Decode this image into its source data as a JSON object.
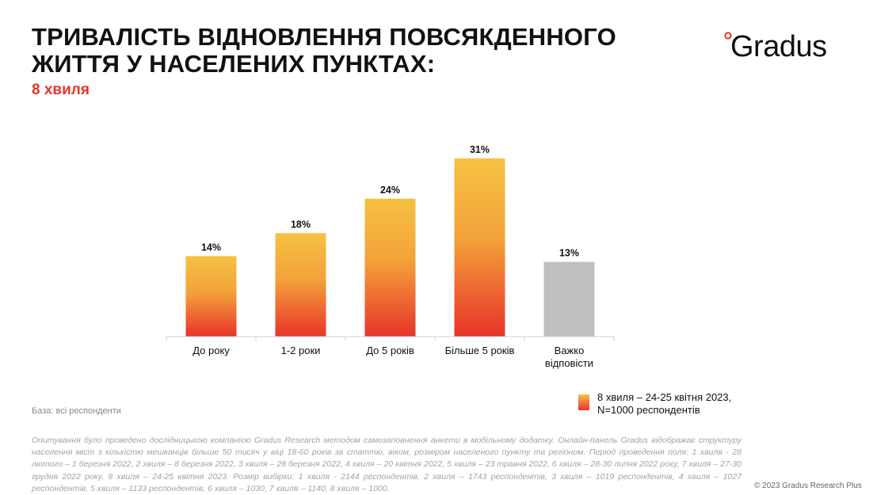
{
  "header": {
    "title": "ТРИВАЛІСТЬ ВІДНОВЛЕННЯ ПОВСЯКДЕННОГО ЖИТТЯ У НАСЕЛЕНИХ ПУНКТАХ:",
    "subtitle": "8 хвиля"
  },
  "brand": {
    "logo_text": "Gradus",
    "accent_color": "#e8332a"
  },
  "chart_data": {
    "type": "bar",
    "categories": [
      "До року",
      "1-2 роки",
      "До 5 років",
      "Більше 5 років",
      "Важко відповісти"
    ],
    "category_lines": [
      [
        "До року"
      ],
      [
        "1-2 роки"
      ],
      [
        "До 5 років"
      ],
      [
        "Більше 5 років"
      ],
      [
        "Важко",
        "відповісти"
      ]
    ],
    "values": [
      14,
      18,
      24,
      31,
      13
    ],
    "value_labels": [
      "14%",
      "18%",
      "24%",
      "31%",
      "13%"
    ],
    "unit": "%",
    "ylim": [
      0,
      31
    ],
    "bar_colors": {
      "gradient_top": "#f5c242",
      "gradient_bottom": "#e8332a",
      "neutral": "#bfbfbf"
    },
    "neutral_index": 4,
    "grid": false,
    "legend_position": "bottom-right"
  },
  "legend": {
    "line1": "8 хвиля – 24-25 квітня 2023,",
    "line2": "N=1000 респондентів"
  },
  "footer": {
    "base": "База: всі респонденти",
    "methodology": "Опитування було проведено дослідницькою компанією Gradus Research методом самозаповнення анкети в мобільному додатку. Онлайн-панель Gradus відображає структуру населення міст з кількістю мешканців більше 50 тисяч у віці 18-60 років за статтю, віком, розміром населеного пункту та регіоном. Період проведення поля: 1 хвиля - 28 лютого – 1 березня 2022, 2 хвиля – 8 березня 2022, 3 хвиля – 28 березня 2022, 4 хвиля – 20 квітня 2022, 5 хвиля – 23 травня 2022, 6 хвиля – 28-30 липня 2022 року, 7 хвиля – 27-30 грудня 2022 року, 8 хвиля – 24-25 квітня 2023. Розмір вибірки: 1 хвиля - 2144 респондентів, 2 хвиля – 1743 респондентів, 3 хвиля – 1019 респондентів, 4 хвиля – 1027 респондентів, 5 хвиля – 1133 респондентів, 6 хвиля – 1030, 7 хвиля – 1140, 8 хвиля – 1000.",
    "copyright": "© 2023 Gradus Research Plus"
  }
}
